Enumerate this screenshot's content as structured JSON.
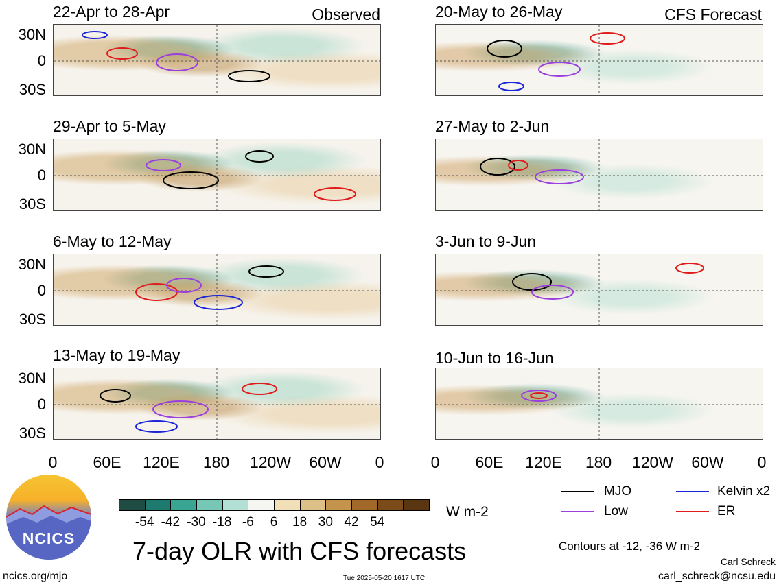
{
  "panels_left": [
    {
      "title": "22-Apr to 28-Apr",
      "tag": "Observed"
    },
    {
      "title": "29-Apr to 5-May",
      "tag": ""
    },
    {
      "title": "6-May to 12-May",
      "tag": ""
    },
    {
      "title": "13-May to 19-May",
      "tag": ""
    }
  ],
  "panels_right": [
    {
      "title": "20-May to 26-May",
      "tag": "CFS Forecast"
    },
    {
      "title": "27-May to 2-Jun",
      "tag": ""
    },
    {
      "title": "3-Jun to 9-Jun",
      "tag": ""
    },
    {
      "title": "10-Jun to 16-Jun",
      "tag": ""
    }
  ],
  "lat_labels": [
    "30N",
    "0",
    "30S"
  ],
  "lon_labels": [
    "0",
    "60E",
    "120E",
    "180",
    "120W",
    "60W",
    "0"
  ],
  "colorbar": {
    "colors": [
      "#1f4d44",
      "#1e7a6e",
      "#3aa593",
      "#76c7b6",
      "#b2e0d4",
      "#f5f5f2",
      "#f1dfb8",
      "#dcc087",
      "#c4934c",
      "#a2682a",
      "#7b4c1a",
      "#5a3512"
    ],
    "labels": [
      "-54",
      "-42",
      "-30",
      "-18",
      "-6",
      "6",
      "18",
      "30",
      "42",
      "54"
    ],
    "units": "W m-2"
  },
  "legend": [
    {
      "label": "MJO",
      "color": "#000000"
    },
    {
      "label": "Kelvin x2",
      "color": "#1b24d6"
    },
    {
      "label": "Low",
      "color": "#9b3fe0"
    },
    {
      "label": "ER",
      "color": "#e01b1b"
    }
  ],
  "contour_note": "Contours at -12, -36 W m-2",
  "main_title": "7-day OLR with CFS forecasts",
  "author": "Carl Schreck",
  "email": "carl_schreck@ncsu.edu",
  "site": "ncics.org/mjo",
  "timestamp": "Tue 2025-05-20 1617 UTC",
  "logo_text": "NCICS"
}
